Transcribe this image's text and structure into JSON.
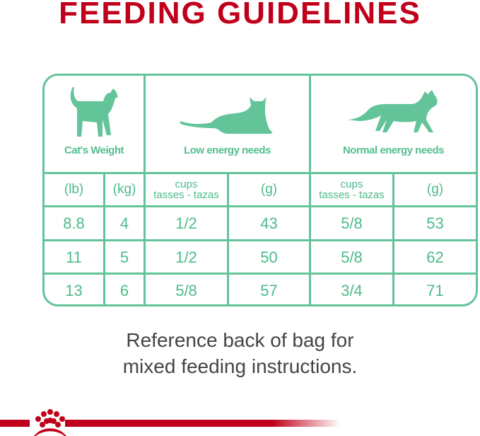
{
  "title": "FEEDING GUIDELINES",
  "table": {
    "headers": [
      "Cat's Weight",
      "Low energy needs",
      "Normal energy needs"
    ],
    "units": [
      "(lb)",
      "(kg)",
      "cups",
      "tasses - tazas",
      "(g)",
      "cups",
      "tasses - tazas",
      "(g)"
    ],
    "rows": [
      [
        "8.8",
        "4",
        "1/2",
        "43",
        "5/8",
        "53"
      ],
      [
        "11",
        "5",
        "1/2",
        "50",
        "5/8",
        "62"
      ],
      [
        "13",
        "6",
        "5/8",
        "57",
        "3/4",
        "71"
      ]
    ]
  },
  "note": [
    "Reference back of bag for",
    "mixed feeding instructions."
  ],
  "icons": [
    "standing-cat-icon",
    "lying-cat-icon",
    "walking-cat-icon",
    "crown-logo-icon"
  ],
  "colors": {
    "accent": "#63c49a",
    "brand_red": "#c0001a",
    "text": "#444444"
  }
}
